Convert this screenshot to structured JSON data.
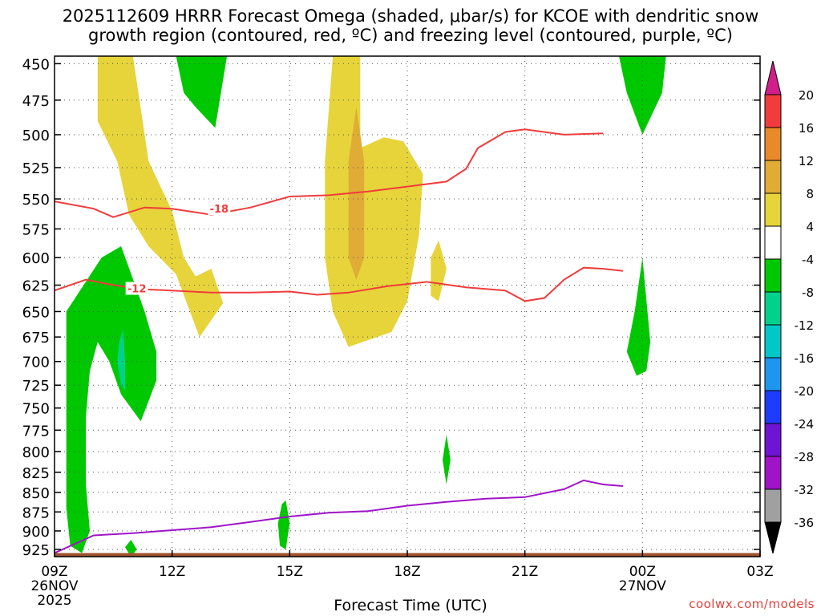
{
  "title_line1": "2025112609 HRRR Forecast Omega (shaded, μbar/s) for KCOE with dendritic snow",
  "title_line2": "growth region (contoured, red, ºC) and freezing level (contoured, purple, ºC)",
  "xlabel": "Forecast Time (UTC)",
  "credit": "coolwx.com/models",
  "chart_data": {
    "type": "contour",
    "x_ticks": [
      "09Z",
      "12Z",
      "15Z",
      "18Z",
      "21Z",
      "00Z",
      "03Z"
    ],
    "x_date_labels": [
      {
        "tick": "09Z",
        "lines": [
          "26NOV",
          "2025"
        ]
      },
      {
        "tick": "00Z",
        "lines": [
          "27NOV"
        ]
      }
    ],
    "x_range_hours": [
      0,
      18
    ],
    "y_ticks": [
      450,
      475,
      500,
      525,
      550,
      575,
      600,
      625,
      650,
      675,
      700,
      725,
      750,
      775,
      800,
      825,
      850,
      875,
      900,
      925
    ],
    "y_range_hpa": [
      445,
      935
    ],
    "grid": true,
    "colorbar": {
      "labels": [
        "20",
        "16",
        "12",
        "8",
        "4",
        "-4",
        "-8",
        "-12",
        "-16",
        "-20",
        "-24",
        "-28",
        "-32",
        "-36"
      ],
      "colors": [
        "#d21e8a",
        "#f03c3c",
        "#e88a2a",
        "#e0ac36",
        "#e6d43a",
        "#ffffff",
        "#00c800",
        "#00d28c",
        "#00c8c8",
        "#1e96f0",
        "#1e3cff",
        "#6e14d2",
        "#a014c8",
        "#a0a0a0",
        "#000000"
      ]
    },
    "omega_regions": [
      {
        "level": "4 to 8",
        "color": "#e6d43a",
        "points": [
          [
            1.1,
            445
          ],
          [
            2.0,
            445
          ],
          [
            2.4,
            520
          ],
          [
            3.0,
            560
          ],
          [
            3.3,
            600
          ],
          [
            3.6,
            617
          ],
          [
            4.0,
            610
          ],
          [
            4.3,
            642
          ],
          [
            3.7,
            675
          ],
          [
            3.1,
            615
          ],
          [
            2.4,
            590
          ],
          [
            1.9,
            563
          ],
          [
            1.6,
            520
          ],
          [
            1.1,
            490
          ]
        ]
      },
      {
        "level": "4 to 8",
        "color": "#e6d43a",
        "points": [
          [
            7.1,
            445
          ],
          [
            7.8,
            445
          ],
          [
            7.8,
            510
          ],
          [
            8.4,
            502
          ],
          [
            8.9,
            505
          ],
          [
            9.4,
            530
          ],
          [
            9.3,
            580
          ],
          [
            9.0,
            640
          ],
          [
            8.6,
            670
          ],
          [
            7.5,
            685
          ],
          [
            7.1,
            650
          ],
          [
            6.9,
            600
          ],
          [
            6.9,
            520
          ]
        ]
      },
      {
        "level": "4 to 8",
        "color": "#e6d43a",
        "points": [
          [
            9.8,
            585
          ],
          [
            10.0,
            610
          ],
          [
            9.8,
            640
          ],
          [
            9.6,
            635
          ],
          [
            9.6,
            600
          ]
        ]
      },
      {
        "level": "8 to 12",
        "color": "#e0ac36",
        "points": [
          [
            7.7,
            480
          ],
          [
            7.9,
            520
          ],
          [
            7.9,
            600
          ],
          [
            7.7,
            620
          ],
          [
            7.5,
            600
          ],
          [
            7.5,
            520
          ]
        ]
      },
      {
        "level": "-4 to -8",
        "color": "#00c800",
        "points": [
          [
            0.3,
            650
          ],
          [
            1.2,
            600
          ],
          [
            1.7,
            590
          ],
          [
            2.3,
            650
          ],
          [
            2.6,
            690
          ],
          [
            2.6,
            720
          ],
          [
            2.2,
            765
          ],
          [
            1.7,
            735
          ],
          [
            1.4,
            700
          ],
          [
            1.1,
            680
          ],
          [
            0.9,
            710
          ],
          [
            0.8,
            760
          ],
          [
            0.8,
            840
          ],
          [
            0.9,
            900
          ],
          [
            0.7,
            930
          ],
          [
            0.4,
            920
          ],
          [
            0.3,
            870
          ],
          [
            0.3,
            760
          ]
        ]
      },
      {
        "level": "-4 to -8",
        "color": "#00c800",
        "points": [
          [
            3.1,
            445
          ],
          [
            4.4,
            445
          ],
          [
            4.1,
            495
          ],
          [
            3.6,
            480
          ],
          [
            3.3,
            470
          ]
        ]
      },
      {
        "level": "-4 to -8",
        "color": "#00c800",
        "points": [
          [
            14.4,
            445
          ],
          [
            15.6,
            445
          ],
          [
            15.5,
            470
          ],
          [
            15.0,
            500
          ],
          [
            14.6,
            470
          ]
        ]
      },
      {
        "level": "-4 to -8",
        "color": "#00c800",
        "points": [
          [
            15.0,
            600
          ],
          [
            15.2,
            680
          ],
          [
            15.1,
            710
          ],
          [
            14.85,
            715
          ],
          [
            14.6,
            690
          ],
          [
            14.8,
            650
          ]
        ]
      },
      {
        "level": "-4 to -8",
        "color": "#00c800",
        "points": [
          [
            10.0,
            780
          ],
          [
            10.1,
            810
          ],
          [
            10.0,
            840
          ],
          [
            9.9,
            810
          ]
        ]
      },
      {
        "level": "-4 to -8",
        "color": "#00c800",
        "points": [
          [
            5.9,
            860
          ],
          [
            6.0,
            890
          ],
          [
            5.9,
            925
          ],
          [
            5.75,
            920
          ],
          [
            5.7,
            890
          ],
          [
            5.8,
            865
          ]
        ]
      },
      {
        "level": "-4 to -8",
        "color": "#00c800",
        "points": [
          [
            1.8,
            922
          ],
          [
            1.95,
            912
          ],
          [
            2.1,
            925
          ],
          [
            1.95,
            935
          ]
        ]
      },
      {
        "level": "-8 to -12",
        "color": "#00d28c",
        "points": [
          [
            1.65,
            680
          ],
          [
            1.75,
            668
          ],
          [
            1.8,
            700
          ],
          [
            1.8,
            730
          ],
          [
            1.7,
            725
          ],
          [
            1.6,
            700
          ]
        ]
      }
    ],
    "dgz_contours": [
      {
        "label": "-18",
        "color": "#f03c3c",
        "points": [
          [
            0,
            552
          ],
          [
            1.0,
            558
          ],
          [
            1.5,
            565
          ],
          [
            2.3,
            557
          ],
          [
            3.0,
            558
          ],
          [
            4.0,
            563
          ],
          [
            5.0,
            557
          ],
          [
            6.0,
            548
          ],
          [
            7.0,
            547
          ],
          [
            8.0,
            544
          ],
          [
            9.0,
            540
          ],
          [
            10.0,
            536
          ],
          [
            10.5,
            526
          ],
          [
            10.8,
            510
          ],
          [
            11.5,
            498
          ],
          [
            12.0,
            496
          ],
          [
            12.5,
            498
          ],
          [
            13.0,
            500
          ],
          [
            14.0,
            499
          ]
        ]
      },
      {
        "label": "-12",
        "color": "#f03c3c",
        "points": [
          [
            0,
            630
          ],
          [
            0.8,
            620
          ],
          [
            1.5,
            625
          ],
          [
            2.3,
            629
          ],
          [
            3.0,
            630
          ],
          [
            4.0,
            632
          ],
          [
            5.0,
            632
          ],
          [
            6.0,
            631
          ],
          [
            6.7,
            634
          ],
          [
            7.5,
            632
          ],
          [
            8.5,
            626
          ],
          [
            9.5,
            622
          ],
          [
            10.5,
            627
          ],
          [
            11.5,
            630
          ],
          [
            12.0,
            640
          ],
          [
            12.5,
            637
          ],
          [
            13.0,
            620
          ],
          [
            13.5,
            609
          ],
          [
            14.0,
            610
          ],
          [
            14.5,
            612
          ]
        ]
      }
    ],
    "freezing_level": {
      "color": "#a014c8",
      "points": [
        [
          0,
          930
        ],
        [
          1.0,
          906
        ],
        [
          2.0,
          903
        ],
        [
          3.0,
          899
        ],
        [
          4.0,
          895
        ],
        [
          5.0,
          888
        ],
        [
          6.0,
          881
        ],
        [
          7.0,
          876
        ],
        [
          8.0,
          874
        ],
        [
          9.0,
          867
        ],
        [
          10.0,
          862
        ],
        [
          11.0,
          858
        ],
        [
          12.0,
          856
        ],
        [
          13.0,
          846
        ],
        [
          13.5,
          835
        ],
        [
          14.0,
          840
        ],
        [
          14.5,
          842
        ]
      ]
    },
    "terrain_band": {
      "color": "#a0522d",
      "top_hpa": 930,
      "bottom_hpa": 935
    }
  }
}
